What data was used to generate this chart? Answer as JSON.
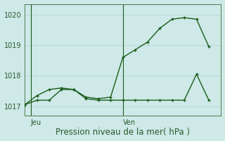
{
  "title": "Pression niveau de la mer( hPa )",
  "bg_color": "#cee9e8",
  "grid_color": "#b8d8d8",
  "line_color": "#1a5c1a",
  "tick_label_color": "#2a5a2a",
  "title_color": "#2a5a2a",
  "ylim": [
    1016.7,
    1020.35
  ],
  "yticks": [
    1017,
    1018,
    1019,
    1020
  ],
  "xlim": [
    0,
    16
  ],
  "series1_x": [
    0,
    1,
    2,
    3,
    4,
    5,
    6,
    7,
    8,
    9,
    10,
    11,
    12,
    13,
    14,
    15
  ],
  "series1_y": [
    1017.05,
    1017.35,
    1017.55,
    1017.6,
    1017.55,
    1017.3,
    1017.25,
    1017.3,
    1018.6,
    1018.85,
    1019.1,
    1019.55,
    1019.85,
    1019.9,
    1019.85,
    1018.95
  ],
  "series2_x": [
    0,
    1,
    2,
    3,
    4,
    5,
    6,
    7,
    8,
    9,
    10,
    11,
    12,
    13,
    14,
    15
  ],
  "series2_y": [
    1017.05,
    1017.2,
    1017.2,
    1017.55,
    1017.55,
    1017.25,
    1017.2,
    1017.2,
    1017.2,
    1017.2,
    1017.2,
    1017.2,
    1017.2,
    1017.2,
    1018.05,
    1017.2
  ],
  "vlines": [
    0.5,
    8.0
  ],
  "xtick_positions": [
    0.5,
    8.0
  ],
  "xtick_labels": [
    "Jeu",
    "Ven"
  ],
  "tick_fontsize": 7,
  "title_fontsize": 8.5,
  "marker_size": 3.5
}
